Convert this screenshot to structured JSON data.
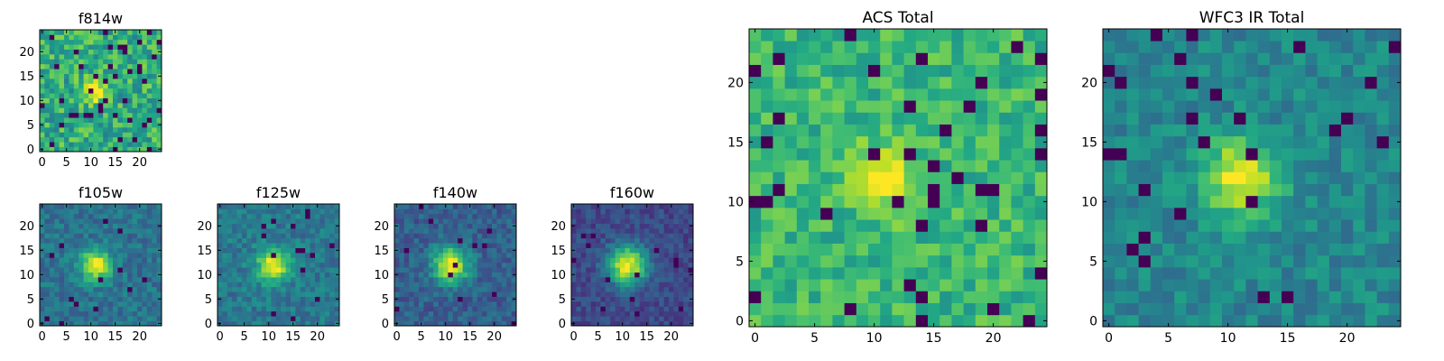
{
  "chart_data": [
    {
      "type": "heatmap",
      "title": "f814w",
      "xticks": [
        0,
        5,
        10,
        15,
        20
      ],
      "yticks": [
        0,
        5,
        10,
        15,
        20
      ],
      "xlim": [
        -0.5,
        24.5
      ],
      "ylim": [
        -0.5,
        24.5
      ],
      "grid_size": 25,
      "source_center": [
        11,
        12
      ],
      "colormap": "viridis"
    },
    {
      "type": "heatmap",
      "title": "f105w",
      "xticks": [
        0,
        5,
        10,
        15,
        20
      ],
      "yticks": [
        0,
        5,
        10,
        15,
        20
      ],
      "xlim": [
        -0.5,
        24.5
      ],
      "ylim": [
        -0.5,
        24.5
      ],
      "grid_size": 25,
      "source_center": [
        11,
        12
      ],
      "colormap": "viridis"
    },
    {
      "type": "heatmap",
      "title": "f125w",
      "xticks": [
        0,
        5,
        10,
        15,
        20
      ],
      "yticks": [
        0,
        5,
        10,
        15,
        20
      ],
      "xlim": [
        -0.5,
        24.5
      ],
      "ylim": [
        -0.5,
        24.5
      ],
      "grid_size": 25,
      "source_center": [
        11,
        12
      ],
      "colormap": "viridis"
    },
    {
      "type": "heatmap",
      "title": "f140w",
      "xticks": [
        0,
        5,
        10,
        15,
        20
      ],
      "yticks": [
        0,
        5,
        10,
        15,
        20
      ],
      "xlim": [
        -0.5,
        24.5
      ],
      "ylim": [
        -0.5,
        24.5
      ],
      "grid_size": 25,
      "source_center": [
        11,
        12
      ],
      "colormap": "viridis"
    },
    {
      "type": "heatmap",
      "title": "f160w",
      "xticks": [
        0,
        5,
        10,
        15,
        20
      ],
      "yticks": [
        0,
        5,
        10,
        15,
        20
      ],
      "xlim": [
        -0.5,
        24.5
      ],
      "ylim": [
        -0.5,
        24.5
      ],
      "grid_size": 25,
      "source_center": [
        11,
        12
      ],
      "colormap": "viridis"
    },
    {
      "type": "heatmap",
      "title": "ACS Total",
      "xticks": [
        0,
        5,
        10,
        15,
        20
      ],
      "yticks": [
        0,
        5,
        10,
        15,
        20
      ],
      "xlim": [
        -0.5,
        24.5
      ],
      "ylim": [
        -0.5,
        24.5
      ],
      "grid_size": 25,
      "source_center": [
        11,
        12
      ],
      "colormap": "viridis"
    },
    {
      "type": "heatmap",
      "title": "WFC3 IR Total",
      "xticks": [
        0,
        5,
        10,
        15,
        20
      ],
      "yticks": [
        0,
        5,
        10,
        15,
        20
      ],
      "xlim": [
        -0.5,
        24.5
      ],
      "ylim": [
        -0.5,
        24.5
      ],
      "grid_size": 25,
      "source_center": [
        11,
        12
      ],
      "colormap": "viridis"
    }
  ]
}
